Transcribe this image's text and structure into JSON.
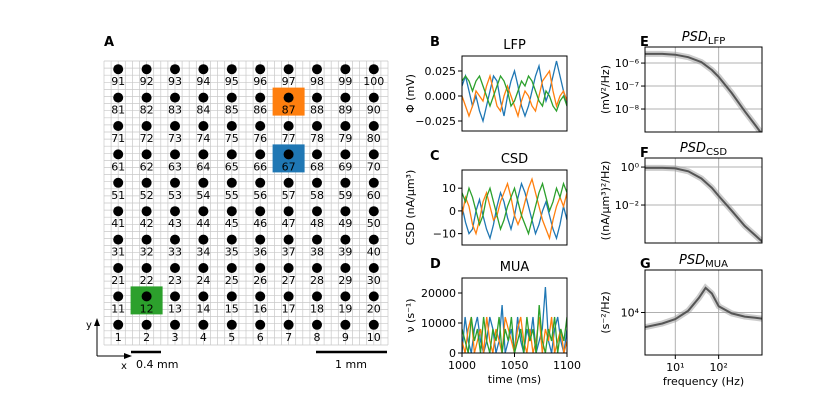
{
  "panel_labels": {
    "A": "A",
    "B": "B",
    "C": "C",
    "D": "D",
    "E": "E",
    "F": "F",
    "G": "G"
  },
  "grid": {
    "electrodes": 100,
    "highlight": [
      {
        "id": 87,
        "color": "#ff7f0e"
      },
      {
        "id": 67,
        "color": "#1f77b4"
      },
      {
        "id": 12,
        "color": "#2ca02c"
      }
    ],
    "scale_left": "0.4 mm",
    "scale_right": "1 mm",
    "axis_y": "y",
    "axis_x": "x"
  },
  "colors": {
    "blue": "#1f77b4",
    "orange": "#ff7f0e",
    "green": "#2ca02c",
    "gray": "#555555"
  },
  "chart_data": [
    {
      "type": "line",
      "panel": "B",
      "title": "LFP",
      "ylabel": "Φ (mV)",
      "ylim": [
        -0.035,
        0.04
      ],
      "xlim": [
        1000,
        1100
      ],
      "yticks": [
        {
          "v": 0.025,
          "t": "0.025"
        },
        {
          "v": 0,
          "t": "0.000"
        },
        {
          "v": -0.025,
          "t": "−0.025"
        }
      ],
      "series": [
        {
          "color": "#1f77b4",
          "values": [
            0.01,
            0.02,
            0.005,
            -0.01,
            0.0,
            -0.015,
            -0.025,
            -0.01,
            0.005,
            0.02,
            0.015,
            -0.005,
            -0.02,
            0.0,
            0.015,
            0.025,
            0.01,
            -0.01,
            -0.02,
            -0.01,
            0.005,
            0.02,
            0.03,
            0.01,
            -0.005,
            0.005,
            0.02,
            0.035,
            0.02,
            0.005,
            -0.01
          ]
        },
        {
          "color": "#ff7f0e",
          "values": [
            0.0,
            -0.01,
            -0.02,
            -0.01,
            0.005,
            0.0,
            -0.005,
            0.01,
            0.02,
            0.005,
            -0.01,
            -0.015,
            0.0,
            0.01,
            0.0,
            -0.01,
            -0.02,
            -0.005,
            0.005,
            0.0,
            -0.01,
            -0.015,
            0.0,
            0.015,
            0.02,
            0.025,
            0.005,
            -0.01,
            0.0,
            0.005,
            -0.005
          ]
        },
        {
          "color": "#2ca02c",
          "values": [
            0.015,
            0.02,
            0.015,
            0.005,
            0.015,
            0.02,
            0.01,
            0.0,
            -0.01,
            0.0,
            0.01,
            0.02,
            0.015,
            0.005,
            -0.01,
            -0.005,
            0.005,
            0.015,
            0.01,
            0.02,
            0.015,
            0.005,
            -0.005,
            -0.01,
            0.005,
            0.0,
            -0.01,
            -0.015,
            -0.005,
            0.0,
            -0.01
          ]
        }
      ]
    },
    {
      "type": "line",
      "panel": "C",
      "title": "CSD",
      "ylabel": "CSD (nA/µm³)",
      "ylim": [
        -15,
        18
      ],
      "xlim": [
        1000,
        1100
      ],
      "yticks": [
        {
          "v": 10,
          "t": "10"
        },
        {
          "v": 0,
          "t": "0"
        },
        {
          "v": -10,
          "t": "−10"
        }
      ],
      "series": [
        {
          "color": "#1f77b4",
          "values": [
            2,
            -5,
            -10,
            -8,
            0,
            5,
            -2,
            -8,
            -12,
            -6,
            2,
            8,
            4,
            -3,
            -8,
            -2,
            6,
            12,
            8,
            2,
            -4,
            -10,
            -6,
            0,
            4,
            -2,
            -8,
            -12,
            -6,
            2,
            -4
          ]
        },
        {
          "color": "#ff7f0e",
          "values": [
            -2,
            6,
            2,
            -6,
            -10,
            -4,
            4,
            8,
            2,
            -4,
            -2,
            4,
            8,
            12,
            6,
            -2,
            -6,
            -2,
            4,
            10,
            14,
            8,
            2,
            -4,
            -8,
            -12,
            -4,
            2,
            6,
            2,
            8
          ]
        },
        {
          "color": "#2ca02c",
          "values": [
            8,
            4,
            10,
            6,
            0,
            -6,
            -2,
            6,
            10,
            4,
            -2,
            -8,
            -4,
            2,
            6,
            10,
            4,
            -2,
            -6,
            -10,
            -4,
            2,
            8,
            12,
            6,
            0,
            4,
            10,
            6,
            12,
            8
          ]
        }
      ]
    },
    {
      "type": "line",
      "panel": "D",
      "title": "MUA",
      "ylabel": "ν (s⁻¹)",
      "xlabel": "time (ms)",
      "ylim": [
        0,
        25000
      ],
      "xlim": [
        1000,
        1100
      ],
      "yticks": [
        {
          "v": 20000,
          "t": "20000"
        },
        {
          "v": 10000,
          "t": "10000"
        },
        {
          "v": 0,
          "t": "0"
        }
      ],
      "xticks": [
        {
          "v": 1000,
          "t": "1000"
        },
        {
          "v": 1050,
          "t": "1050"
        },
        {
          "v": 1100,
          "t": "1100"
        }
      ],
      "series": [
        {
          "color": "#1f77b4",
          "values": [
            0,
            12000,
            4000,
            0,
            8000,
            12000,
            4000,
            0,
            4000,
            12000,
            8000,
            0,
            4000,
            16000,
            0,
            4000,
            8000,
            0,
            12000,
            4000,
            0,
            8000,
            4000,
            12000,
            0,
            4000,
            8000,
            22000,
            4000,
            0,
            8000,
            12000,
            4000,
            0,
            8000
          ]
        },
        {
          "color": "#ff7f0e",
          "values": [
            4000,
            0,
            8000,
            12000,
            0,
            4000,
            8000,
            0,
            12000,
            4000,
            0,
            8000,
            4000,
            0,
            12000,
            8000,
            4000,
            0,
            8000,
            12000,
            4000,
            0,
            8000,
            0,
            4000,
            12000,
            0,
            8000,
            4000,
            12000,
            0,
            4000,
            8000,
            0,
            4000
          ]
        },
        {
          "color": "#2ca02c",
          "values": [
            8000,
            4000,
            0,
            12000,
            4000,
            8000,
            0,
            12000,
            4000,
            0,
            8000,
            4000,
            12000,
            0,
            8000,
            4000,
            12000,
            0,
            4000,
            8000,
            0,
            12000,
            4000,
            8000,
            0,
            16000,
            4000,
            0,
            8000,
            4000,
            12000,
            0,
            8000,
            4000,
            12000
          ]
        }
      ]
    },
    {
      "type": "line",
      "panel": "E",
      "title": "PSD_LFP",
      "title_main": "PSD",
      "title_sub": "LFP",
      "ylabel": "(mV²/Hz)",
      "logx": true,
      "logy": true,
      "xlim": [
        2,
        1000
      ],
      "ylim": [
        1e-09,
        5e-06
      ],
      "yticks": [
        {
          "v": 1e-06,
          "t": "10⁻⁶"
        },
        {
          "v": 1e-07,
          "t": "10⁻⁷"
        },
        {
          "v": 1e-08,
          "t": "10⁻⁸"
        }
      ],
      "xgrid": [
        10,
        100
      ],
      "series": [
        {
          "color": "#555555",
          "x": [
            2,
            5,
            10,
            20,
            40,
            70,
            100,
            200,
            400,
            700,
            1000
          ],
          "values": [
            2.5e-06,
            2.5e-06,
            2.3e-06,
            1.8e-06,
            1.1e-06,
            5e-07,
            2.5e-07,
            5e-08,
            8e-09,
            2e-09,
            8e-10
          ]
        }
      ]
    },
    {
      "type": "line",
      "panel": "F",
      "title": "PSD_CSD",
      "title_main": "PSD",
      "title_sub": "CSD",
      "ylabel": "((nA/µm³)²/Hz)",
      "logx": true,
      "logy": true,
      "xlim": [
        2,
        1000
      ],
      "ylim": [
        0.0001,
        3
      ],
      "yticks": [
        {
          "v": 1,
          "t": "10⁰"
        },
        {
          "v": 0.01,
          "t": "10⁻²"
        }
      ],
      "xgrid": [
        10,
        100
      ],
      "series": [
        {
          "color": "#555555",
          "x": [
            2,
            5,
            10,
            20,
            40,
            70,
            100,
            200,
            400,
            700,
            1000
          ],
          "values": [
            0.9,
            0.9,
            0.85,
            0.6,
            0.25,
            0.08,
            0.03,
            0.005,
            0.0008,
            0.00025,
            0.00012
          ]
        }
      ]
    },
    {
      "type": "line",
      "panel": "G",
      "title": "PSD_MUA",
      "title_main": "PSD",
      "title_sub": "MUA",
      "ylabel": "(s⁻²/Hz)",
      "xlabel": "frequency (Hz)",
      "logx": true,
      "logy": true,
      "xlim": [
        2,
        1000
      ],
      "ylim": [
        1000,
        100000
      ],
      "yticks": [
        {
          "v": 10000,
          "t": "10⁴"
        }
      ],
      "xticks": [
        {
          "v": 10,
          "t": "10¹"
        },
        {
          "v": 100,
          "t": "10²"
        }
      ],
      "xgrid": [
        10,
        100
      ],
      "series": [
        {
          "color": "#555555",
          "x": [
            2,
            5,
            10,
            20,
            35,
            50,
            70,
            100,
            200,
            400,
            700,
            1000
          ],
          "values": [
            4500,
            5500,
            7000,
            11000,
            22000,
            38000,
            28000,
            14000,
            9500,
            8000,
            7500,
            7200
          ]
        }
      ]
    }
  ]
}
